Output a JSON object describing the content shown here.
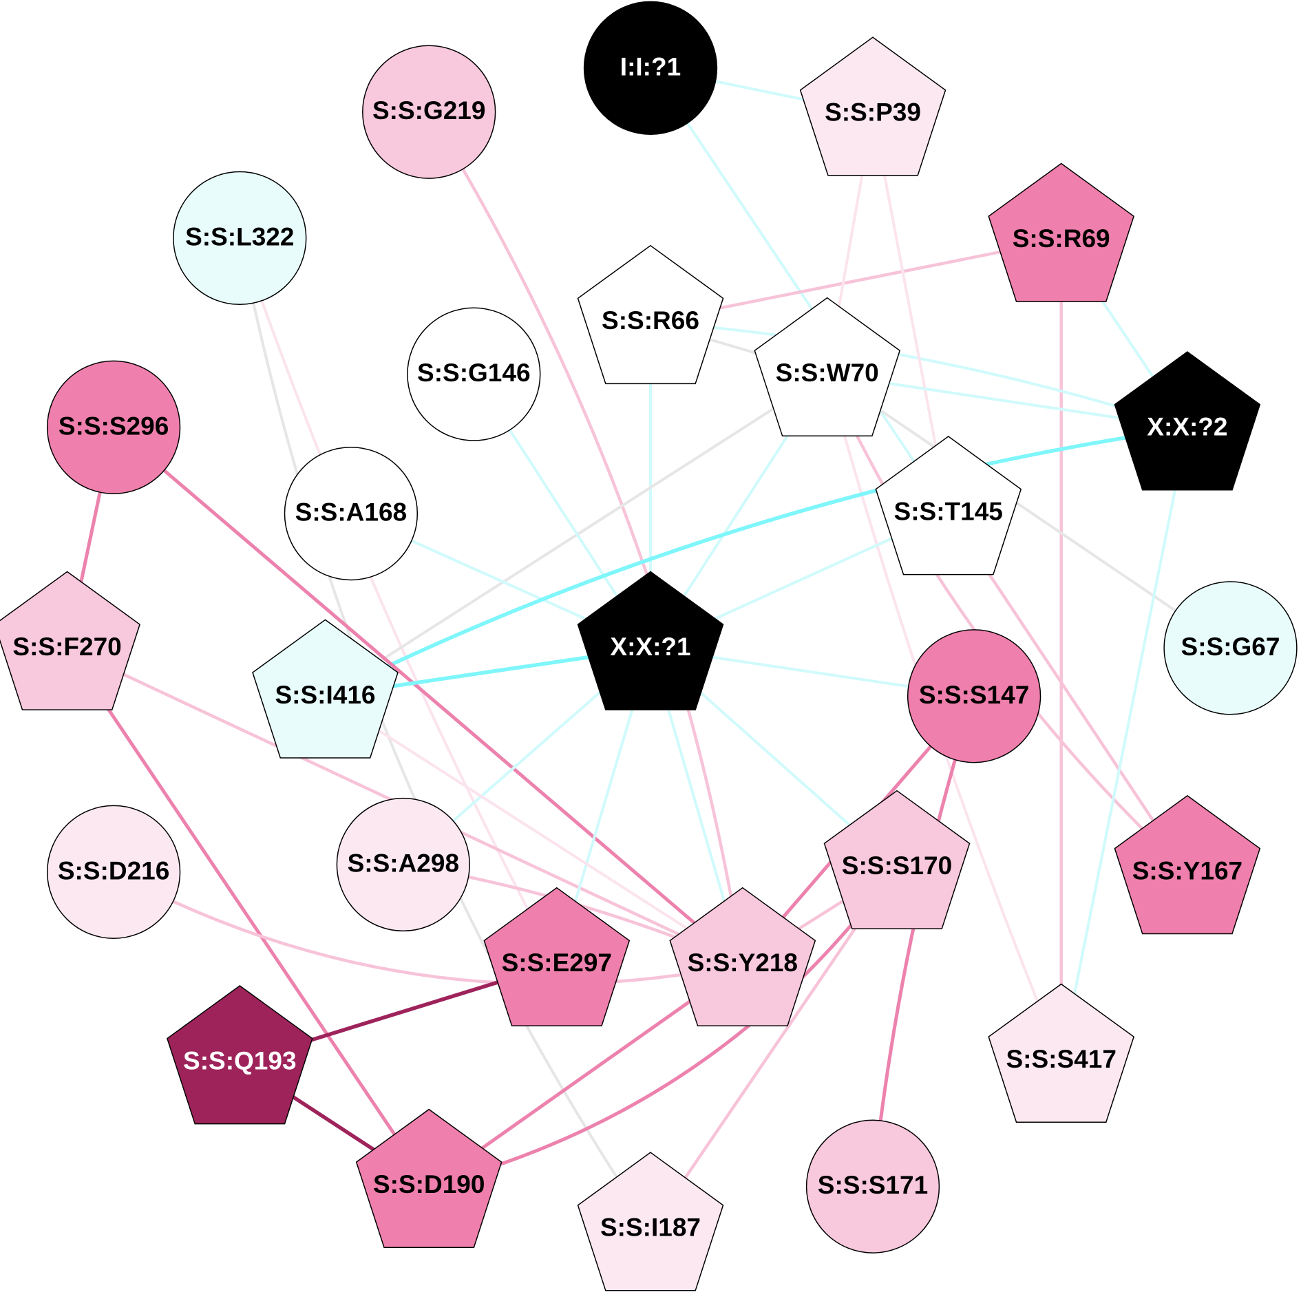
{
  "colors": {
    "black": "#000000",
    "white": "#ffffff",
    "cyan_light": "#e8fcfc",
    "pink_pale": "#fbe8f1",
    "pink_light": "#f8c8dc",
    "pink_mid": "#ef7fac",
    "magenta_dark": "#9e235b",
    "edge_gray": "#e6e6e6",
    "edge_cyan_light": "#d0fafc",
    "edge_cyan": "#7ef6fa",
    "edge_pink_pale": "#fbe4ee",
    "edge_pink_light": "#f7c3d8",
    "edge_pink_mid": "#ec82ad",
    "edge_magenta": "#9e235b"
  },
  "nodes": [
    {
      "id": "I1",
      "label": "I:I:?1",
      "shape": "circle",
      "fill": "black",
      "text": "white"
    },
    {
      "id": "P39",
      "label": "S:S:P39",
      "shape": "pentagon",
      "fill": "pink_pale",
      "text": "black"
    },
    {
      "id": "G219",
      "label": "S:S:G219",
      "shape": "circle",
      "fill": "pink_light",
      "text": "black"
    },
    {
      "id": "L322",
      "label": "S:S:L322",
      "shape": "circle",
      "fill": "cyan_light",
      "text": "black"
    },
    {
      "id": "R69",
      "label": "S:S:R69",
      "shape": "pentagon",
      "fill": "pink_mid",
      "text": "black"
    },
    {
      "id": "R66",
      "label": "S:S:R66",
      "shape": "pentagon",
      "fill": "white",
      "text": "black"
    },
    {
      "id": "G146",
      "label": "S:S:G146",
      "shape": "circle",
      "fill": "white",
      "text": "black"
    },
    {
      "id": "W70",
      "label": "S:S:W70",
      "shape": "pentagon",
      "fill": "white",
      "text": "black"
    },
    {
      "id": "X2",
      "label": "X:X:?2",
      "shape": "pentagon",
      "fill": "black",
      "text": "white"
    },
    {
      "id": "S296",
      "label": "S:S:S296",
      "shape": "circle",
      "fill": "pink_mid",
      "text": "black"
    },
    {
      "id": "A168",
      "label": "S:S:A168",
      "shape": "circle",
      "fill": "white",
      "text": "black"
    },
    {
      "id": "T145",
      "label": "S:S:T145",
      "shape": "pentagon",
      "fill": "white",
      "text": "black"
    },
    {
      "id": "F270",
      "label": "S:S:F270",
      "shape": "pentagon",
      "fill": "pink_light",
      "text": "black"
    },
    {
      "id": "X1",
      "label": "X:X:?1",
      "shape": "pentagon",
      "fill": "black",
      "text": "white"
    },
    {
      "id": "G67",
      "label": "S:S:G67",
      "shape": "circle",
      "fill": "cyan_light",
      "text": "black"
    },
    {
      "id": "I416",
      "label": "S:S:I416",
      "shape": "pentagon",
      "fill": "cyan_light",
      "text": "black"
    },
    {
      "id": "S147",
      "label": "S:S:S147",
      "shape": "circle",
      "fill": "pink_mid",
      "text": "black"
    },
    {
      "id": "D216",
      "label": "S:S:D216",
      "shape": "circle",
      "fill": "pink_pale",
      "text": "black"
    },
    {
      "id": "A298",
      "label": "S:S:A298",
      "shape": "circle",
      "fill": "pink_pale",
      "text": "black"
    },
    {
      "id": "S170",
      "label": "S:S:S170",
      "shape": "pentagon",
      "fill": "pink_light",
      "text": "black"
    },
    {
      "id": "Y167",
      "label": "S:S:Y167",
      "shape": "pentagon",
      "fill": "pink_mid",
      "text": "black"
    },
    {
      "id": "E297",
      "label": "S:S:E297",
      "shape": "pentagon",
      "fill": "pink_mid",
      "text": "black"
    },
    {
      "id": "Y218",
      "label": "S:S:Y218",
      "shape": "pentagon",
      "fill": "pink_light",
      "text": "black"
    },
    {
      "id": "Q193",
      "label": "S:S:Q193",
      "shape": "pentagon",
      "fill": "magenta_dark",
      "text": "white"
    },
    {
      "id": "S417",
      "label": "S:S:S417",
      "shape": "pentagon",
      "fill": "pink_pale",
      "text": "black"
    },
    {
      "id": "D190",
      "label": "S:S:D190",
      "shape": "pentagon",
      "fill": "pink_mid",
      "text": "black"
    },
    {
      "id": "S171",
      "label": "S:S:S171",
      "shape": "circle",
      "fill": "pink_light",
      "text": "black"
    },
    {
      "id": "I187",
      "label": "S:S:I187",
      "shape": "pentagon",
      "fill": "pink_pale",
      "text": "black"
    }
  ],
  "edges": [
    {
      "source": "I1",
      "target": "P39",
      "color": "edge_cyan_light"
    },
    {
      "source": "I1",
      "target": "T145",
      "color": "edge_cyan_light"
    },
    {
      "source": "G219",
      "target": "Y218",
      "color": "edge_pink_light"
    },
    {
      "source": "L322",
      "target": "I187",
      "color": "edge_gray"
    },
    {
      "source": "L322",
      "target": "E297",
      "color": "edge_pink_pale"
    },
    {
      "source": "R69",
      "target": "R66",
      "color": "edge_pink_light"
    },
    {
      "source": "R69",
      "target": "S417",
      "color": "edge_pink_light"
    },
    {
      "source": "R69",
      "target": "X2",
      "color": "edge_cyan_light"
    },
    {
      "source": "R66",
      "target": "X2",
      "color": "edge_cyan_light"
    },
    {
      "source": "R66",
      "target": "W70",
      "color": "edge_gray"
    },
    {
      "source": "R66",
      "target": "X1",
      "color": "edge_cyan_light"
    },
    {
      "source": "P39",
      "target": "W70",
      "color": "edge_pink_pale"
    },
    {
      "source": "P39",
      "target": "T145",
      "color": "edge_pink_pale"
    },
    {
      "source": "W70",
      "target": "X2",
      "color": "edge_cyan_light"
    },
    {
      "source": "W70",
      "target": "I416",
      "color": "edge_gray"
    },
    {
      "source": "W70",
      "target": "G67",
      "color": "edge_gray"
    },
    {
      "source": "W70",
      "target": "Y167",
      "color": "edge_pink_light"
    },
    {
      "source": "W70",
      "target": "S417",
      "color": "edge_pink_pale"
    },
    {
      "source": "W70",
      "target": "X1",
      "color": "edge_cyan_light"
    },
    {
      "source": "G146",
      "target": "X1",
      "color": "edge_cyan_light"
    },
    {
      "source": "A168",
      "target": "X1",
      "color": "edge_cyan_light"
    },
    {
      "source": "T145",
      "target": "X1",
      "color": "edge_cyan_light"
    },
    {
      "source": "T145",
      "target": "Y167",
      "color": "edge_pink_light"
    },
    {
      "source": "X2",
      "target": "I416",
      "color": "edge_cyan"
    },
    {
      "source": "X2",
      "target": "S417",
      "color": "edge_cyan_light"
    },
    {
      "source": "S296",
      "target": "F270",
      "color": "edge_pink_mid"
    },
    {
      "source": "S296",
      "target": "Y218",
      "color": "edge_pink_mid"
    },
    {
      "source": "F270",
      "target": "D190",
      "color": "edge_pink_mid"
    },
    {
      "source": "F270",
      "target": "Y218",
      "color": "edge_pink_light"
    },
    {
      "source": "X1",
      "target": "I416",
      "color": "edge_cyan"
    },
    {
      "source": "X1",
      "target": "S147",
      "color": "edge_cyan_light"
    },
    {
      "source": "X1",
      "target": "A298",
      "color": "edge_cyan_light"
    },
    {
      "source": "X1",
      "target": "Y218",
      "color": "edge_cyan_light"
    },
    {
      "source": "X1",
      "target": "S170",
      "color": "edge_cyan_light"
    },
    {
      "source": "X1",
      "target": "E297",
      "color": "edge_cyan_light"
    },
    {
      "source": "I416",
      "target": "Y218",
      "color": "edge_pink_pale"
    },
    {
      "source": "S147",
      "target": "Y218",
      "color": "edge_pink_mid"
    },
    {
      "source": "S147",
      "target": "S171",
      "color": "edge_pink_mid"
    },
    {
      "source": "D216",
      "target": "Y218",
      "color": "edge_pink_light"
    },
    {
      "source": "A298",
      "target": "Y218",
      "color": "edge_pink_light"
    },
    {
      "source": "S170",
      "target": "Y218",
      "color": "edge_pink_light"
    },
    {
      "source": "S170",
      "target": "D190",
      "color": "edge_pink_mid"
    },
    {
      "source": "S170",
      "target": "I187",
      "color": "edge_pink_light"
    },
    {
      "source": "E297",
      "target": "Q193",
      "color": "edge_magenta"
    },
    {
      "source": "Y218",
      "target": "D190",
      "color": "edge_pink_mid"
    },
    {
      "source": "Q193",
      "target": "D190",
      "color": "edge_magenta"
    }
  ]
}
